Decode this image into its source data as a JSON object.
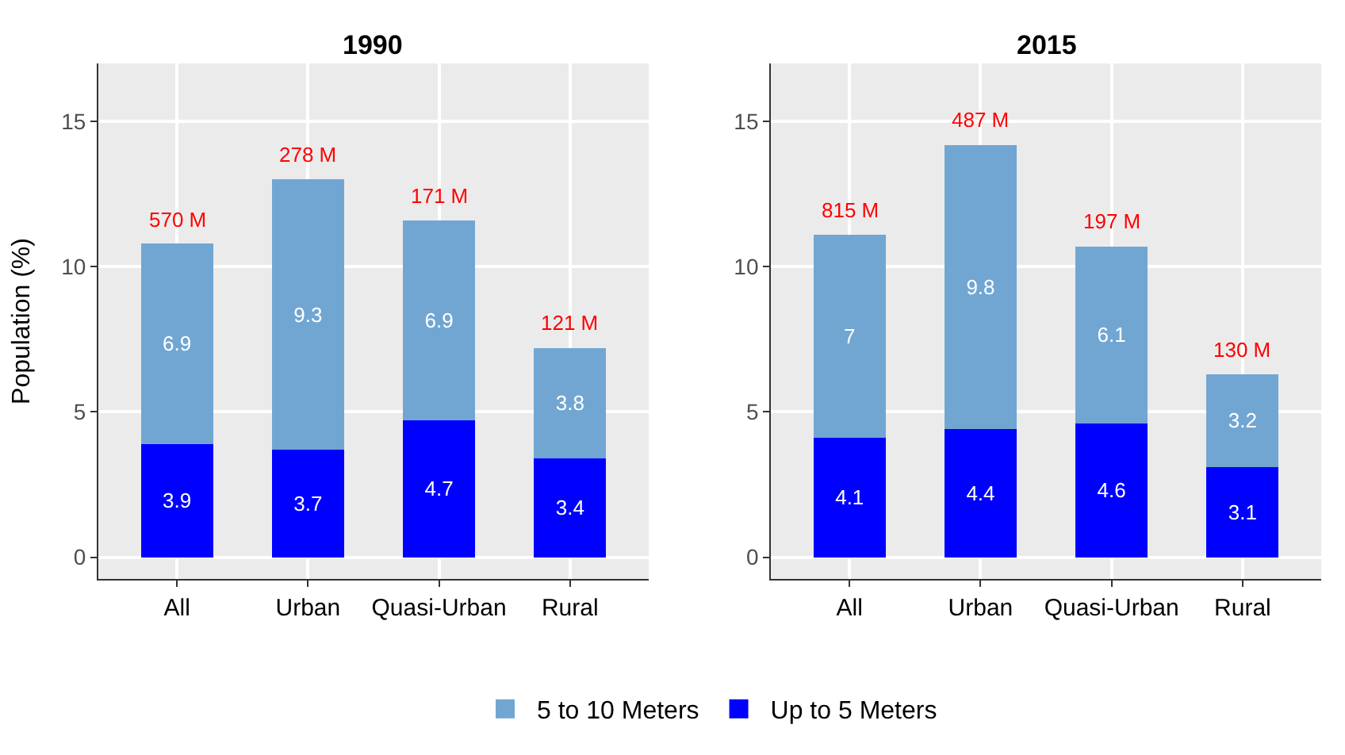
{
  "chart_data": [
    {
      "type": "bar",
      "title": "1990",
      "ylabel": "Population (%)",
      "categories": [
        "All",
        "Urban",
        "Quasi-Urban",
        "Rural"
      ],
      "stacked": true,
      "data_labels": true,
      "grid": true,
      "legend": "bottom",
      "ylim": [
        -0.75,
        17
      ],
      "yticks": [
        0,
        5,
        10,
        15
      ],
      "series": [
        {
          "name": "Up to 5 Meters",
          "color": "#0000ff",
          "values": [
            3.9,
            3.7,
            4.7,
            3.4
          ]
        },
        {
          "name": "5 to 10 Meters",
          "color": "#71a6d2",
          "values": [
            6.9,
            9.3,
            6.9,
            3.8
          ]
        }
      ],
      "annotations": [
        {
          "text": "570 M",
          "x": "All",
          "y": 10.8
        },
        {
          "text": "278 M",
          "x": "Urban",
          "y": 13
        },
        {
          "text": "171 M",
          "x": "Quasi-Urban",
          "y": 11.6
        },
        {
          "text": "121 M",
          "x": "Rural",
          "y": 7.2
        }
      ]
    },
    {
      "type": "bar",
      "title": "2015",
      "categories": [
        "All",
        "Urban",
        "Quasi-Urban",
        "Rural"
      ],
      "stacked": true,
      "data_labels": true,
      "grid": true,
      "legend": "bottom",
      "ylim": [
        -0.75,
        17
      ],
      "yticks": [
        0,
        5,
        10,
        15
      ],
      "series": [
        {
          "name": "Up to 5 Meters",
          "color": "#0000ff",
          "values": [
            4.1,
            4.4,
            4.6,
            3.1
          ]
        },
        {
          "name": "5 to 10 Meters",
          "color": "#71a6d2",
          "values": [
            7,
            9.8,
            6.1,
            3.2
          ]
        }
      ],
      "annotations": [
        {
          "text": "815 M",
          "x": "All",
          "y": 11.1
        },
        {
          "text": "487 M",
          "x": "Urban",
          "y": 14.2
        },
        {
          "text": "197 M",
          "x": "Quasi-Urban",
          "y": 10.7
        },
        {
          "text": "130 M",
          "x": "Rural",
          "y": 6.3
        }
      ]
    }
  ]
}
